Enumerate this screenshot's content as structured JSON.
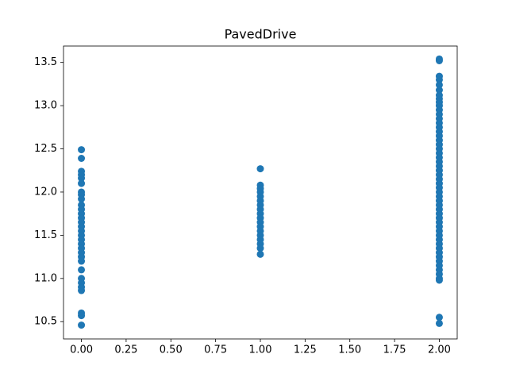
{
  "chart_data": {
    "type": "scatter",
    "title": "PavedDrive",
    "color": "#1f77b4",
    "x": [
      0,
      0,
      0,
      0,
      0,
      0,
      0,
      0,
      0,
      0,
      0,
      0,
      0,
      0,
      0,
      0,
      0,
      0,
      0,
      0,
      0,
      0,
      0,
      0,
      0,
      0,
      0,
      0,
      0,
      0,
      0,
      1,
      1,
      1,
      1,
      1,
      1,
      1,
      1,
      1,
      1,
      1,
      1,
      1,
      1,
      1,
      1,
      1,
      1,
      2,
      2,
      2,
      2,
      2,
      2,
      2,
      2,
      2,
      2,
      2,
      2,
      2,
      2,
      2,
      2,
      2,
      2,
      2,
      2,
      2,
      2,
      2,
      2,
      2,
      2,
      2,
      2,
      2,
      2,
      2,
      2,
      2,
      2,
      2,
      2,
      2,
      2,
      2,
      2,
      2,
      2,
      2,
      2,
      2,
      2,
      2,
      2,
      2,
      2,
      2,
      2,
      2
    ],
    "values": [
      12.49,
      12.39,
      12.24,
      12.2,
      12.16,
      12.1,
      12.0,
      11.97,
      11.92,
      11.85,
      11.8,
      11.75,
      11.7,
      11.65,
      11.6,
      11.55,
      11.5,
      11.45,
      11.4,
      11.35,
      11.3,
      11.25,
      11.2,
      11.1,
      11.0,
      10.95,
      10.9,
      10.86,
      10.6,
      10.57,
      10.46,
      12.27,
      12.08,
      12.04,
      12.0,
      11.95,
      11.9,
      11.85,
      11.8,
      11.75,
      11.7,
      11.65,
      11.6,
      11.55,
      11.5,
      11.45,
      11.4,
      11.35,
      11.28,
      13.54,
      13.52,
      13.34,
      13.3,
      13.24,
      13.18,
      13.12,
      13.08,
      13.04,
      13.0,
      12.95,
      12.9,
      12.85,
      12.8,
      12.75,
      12.7,
      12.65,
      12.6,
      12.55,
      12.5,
      12.45,
      12.4,
      12.35,
      12.3,
      12.25,
      12.2,
      12.15,
      12.1,
      12.05,
      12.0,
      11.95,
      11.9,
      11.85,
      11.8,
      11.75,
      11.7,
      11.65,
      11.6,
      11.55,
      11.5,
      11.45,
      11.4,
      11.35,
      11.3,
      11.25,
      11.2,
      11.15,
      11.1,
      11.05,
      11.0,
      10.98,
      10.55,
      10.48
    ],
    "xlim": [
      -0.1,
      2.1
    ],
    "ylim": [
      10.3,
      13.69
    ],
    "xticks": [
      {
        "value": 0,
        "label": "0.00"
      },
      {
        "value": 0.25,
        "label": "0.25"
      },
      {
        "value": 0.5,
        "label": "0.50"
      },
      {
        "value": 0.75,
        "label": "0.75"
      },
      {
        "value": 1,
        "label": "1.00"
      },
      {
        "value": 1.25,
        "label": "1.25"
      },
      {
        "value": 1.5,
        "label": "1.50"
      },
      {
        "value": 1.75,
        "label": "1.75"
      },
      {
        "value": 2,
        "label": "2.00"
      }
    ],
    "yticks": [
      10.5,
      {
        "value": 11,
        "label": "11.0"
      },
      11.5,
      {
        "value": 12,
        "label": "12.0"
      },
      12.5,
      {
        "value": 13,
        "label": "13.0"
      },
      13.5
    ]
  }
}
